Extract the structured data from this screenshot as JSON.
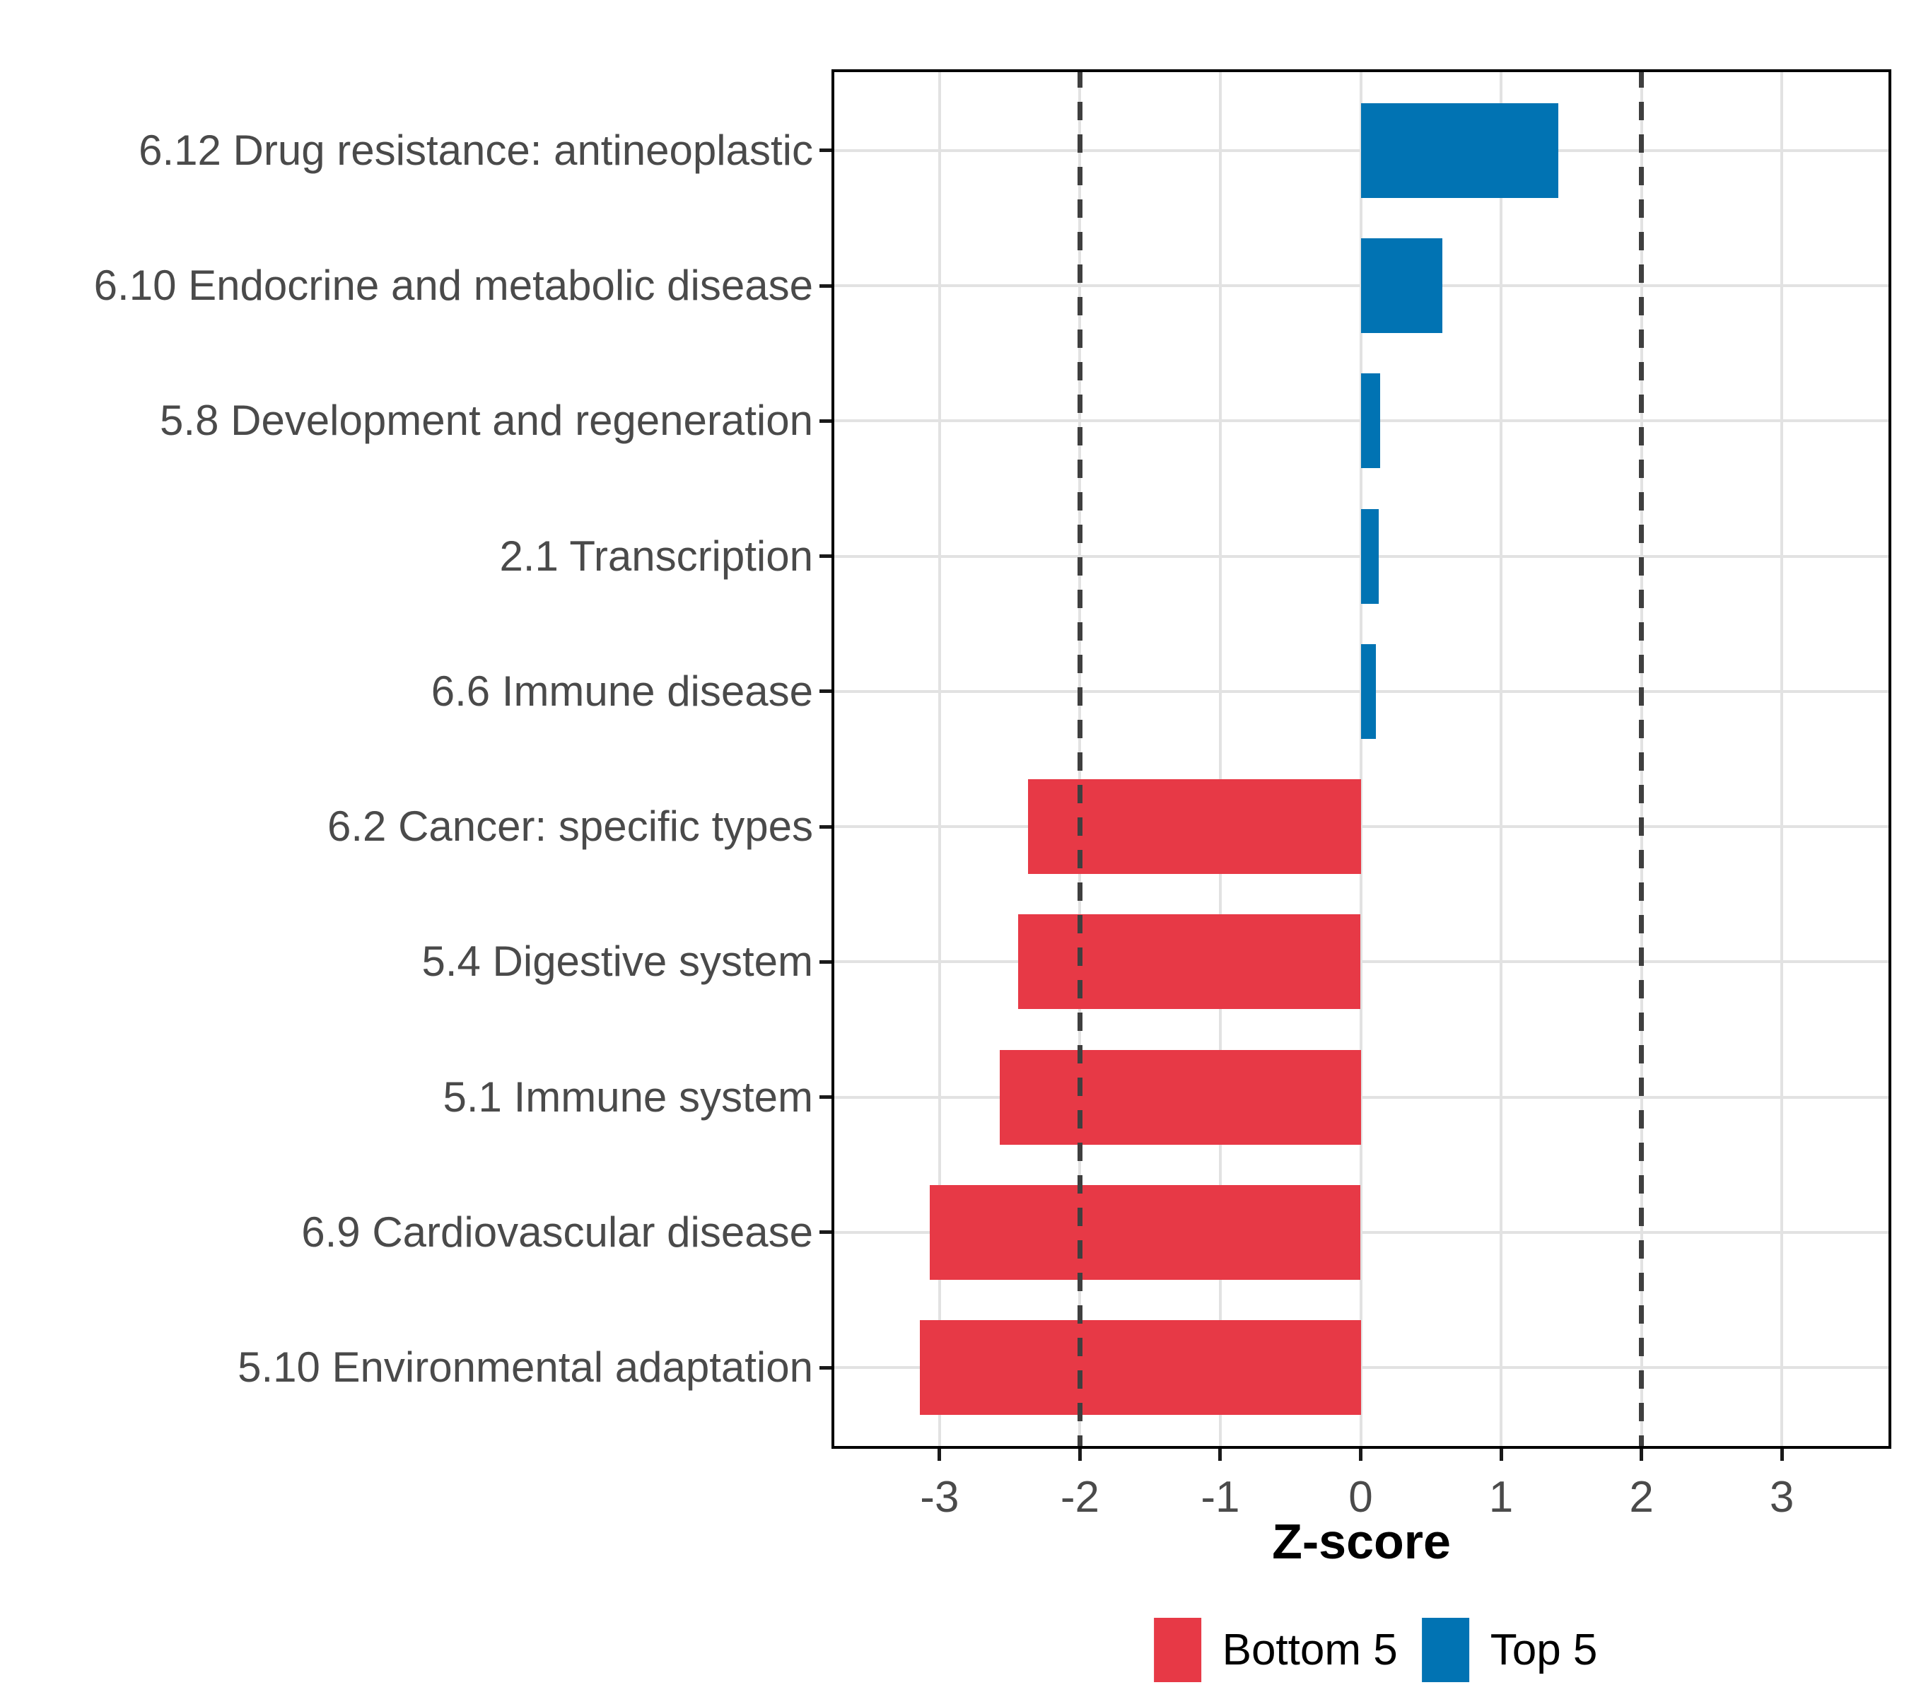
{
  "chart_data": {
    "type": "bar",
    "orientation": "horizontal",
    "title": "",
    "xlabel": "Z-score",
    "ylabel": "",
    "xlim": [
      -3.77,
      3.78
    ],
    "xticks": [
      -3,
      -2,
      -1,
      0,
      1,
      2,
      3
    ],
    "reference_lines": [
      -2,
      2
    ],
    "grid": "major",
    "panel_border_color": "#000000",
    "gridline_color": "#e2e2e2",
    "reference_line_color": "#3f3f3f",
    "axis_text_color": "#4a4a4a",
    "legend": {
      "position": "bottom",
      "items": [
        {
          "label": "Bottom 5",
          "color": "#E73946"
        },
        {
          "label": "Top 5",
          "color": "#0173B3"
        }
      ]
    },
    "bars": [
      {
        "label": "6.12 Drug resistance: antineoplastic",
        "value": 1.41,
        "group": "Top 5"
      },
      {
        "label": "6.10 Endocrine and metabolic disease",
        "value": 0.58,
        "group": "Top 5"
      },
      {
        "label": "5.8 Development and regeneration",
        "value": 0.14,
        "group": "Top 5"
      },
      {
        "label": "2.1 Transcription",
        "value": 0.13,
        "group": "Top 5"
      },
      {
        "label": "6.6 Immune disease",
        "value": 0.11,
        "group": "Top 5"
      },
      {
        "label": "6.2 Cancer: specific types",
        "value": -2.37,
        "group": "Bottom 5"
      },
      {
        "label": "5.4 Digestive system",
        "value": -2.44,
        "group": "Bottom 5"
      },
      {
        "label": "5.1 Immune system",
        "value": -2.57,
        "group": "Bottom 5"
      },
      {
        "label": "6.9 Cardiovascular disease",
        "value": -3.07,
        "group": "Bottom 5"
      },
      {
        "label": "5.10 Environmental adaptation",
        "value": -3.14,
        "group": "Bottom 5"
      }
    ]
  }
}
